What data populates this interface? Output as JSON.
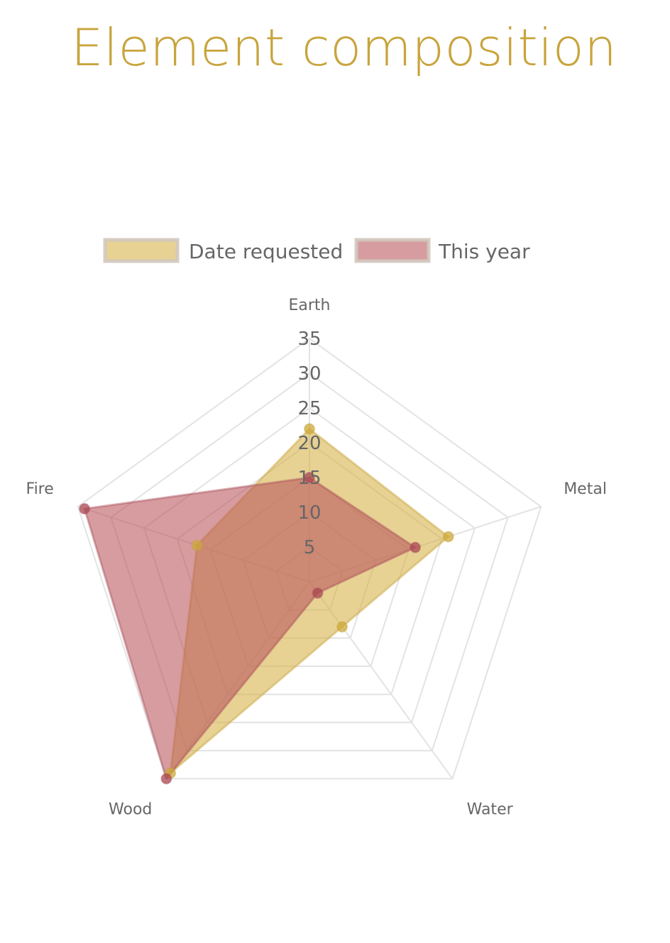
{
  "header": {
    "title": "Element composition"
  },
  "colors": {
    "title": "#c8a43c",
    "grid": "#e3e3e3",
    "series_1_fill": "rgba(214, 178, 70, 0.58)",
    "series_1_stroke": "rgba(200, 165, 60, 0.45)",
    "series_1_point": "rgba(205, 168, 55, 0.75)",
    "series_2_fill": "rgba(184, 84, 92, 0.58)",
    "series_2_stroke": "rgba(170, 80, 90, 0.45)",
    "series_2_point": "rgba(170, 70, 80, 0.75)"
  },
  "chart_data": {
    "type": "radar",
    "title": "Element composition",
    "categories": [
      "Earth",
      "Metal",
      "Water",
      "Wood",
      "Fire"
    ],
    "r_ticks": [
      "5",
      "10",
      "15",
      "20",
      "25",
      "30",
      "35"
    ],
    "r_range": [
      0,
      35
    ],
    "legend_position": "top",
    "series": [
      {
        "name": "Date requested",
        "values": [
          22,
          21,
          8,
          34,
          17
        ]
      },
      {
        "name": "This year",
        "values": [
          15,
          16,
          2,
          35,
          34
        ]
      }
    ]
  }
}
